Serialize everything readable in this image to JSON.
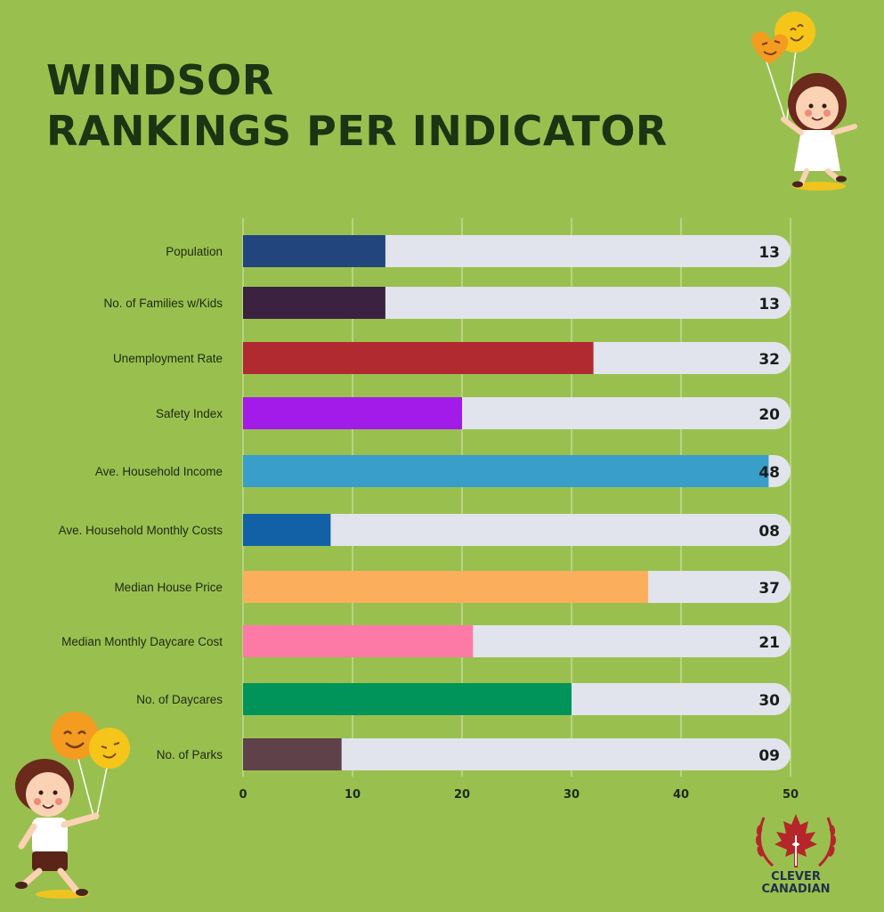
{
  "title_lines": [
    "WINDSOR",
    "RANKINGS PER INDICATOR"
  ],
  "logo": {
    "line1": "CLEVER",
    "line2": "CANADIAN"
  },
  "chart_data": {
    "type": "bar",
    "orientation": "horizontal",
    "categories": [
      "Population",
      "No. of Families w/Kids",
      "Unemployment Rate",
      "Safety Index",
      "Ave. Household Income",
      "Ave. Household Monthly Costs",
      "Median House Price",
      "Median Monthly Daycare Cost",
      "No. of Daycares",
      "No. of Parks"
    ],
    "values": [
      13,
      13,
      32,
      20,
      48,
      8,
      37,
      21,
      30,
      9
    ],
    "value_labels": [
      "13",
      "13",
      "32",
      "20",
      "48",
      "08",
      "37",
      "21",
      "30",
      "09"
    ],
    "colors": [
      "#22457e",
      "#3a2240",
      "#b02a30",
      "#a21be8",
      "#399ec9",
      "#1261a6",
      "#fbae5c",
      "#fe7aa6",
      "#00945a",
      "#5e4149"
    ],
    "track_color": "#e1e4ec",
    "xlim": [
      0,
      50
    ],
    "xticks": [
      0,
      10,
      20,
      30,
      40,
      50
    ],
    "grid": true,
    "title": "WINDSOR RANKINGS PER INDICATOR",
    "xlabel": "",
    "ylabel": ""
  }
}
